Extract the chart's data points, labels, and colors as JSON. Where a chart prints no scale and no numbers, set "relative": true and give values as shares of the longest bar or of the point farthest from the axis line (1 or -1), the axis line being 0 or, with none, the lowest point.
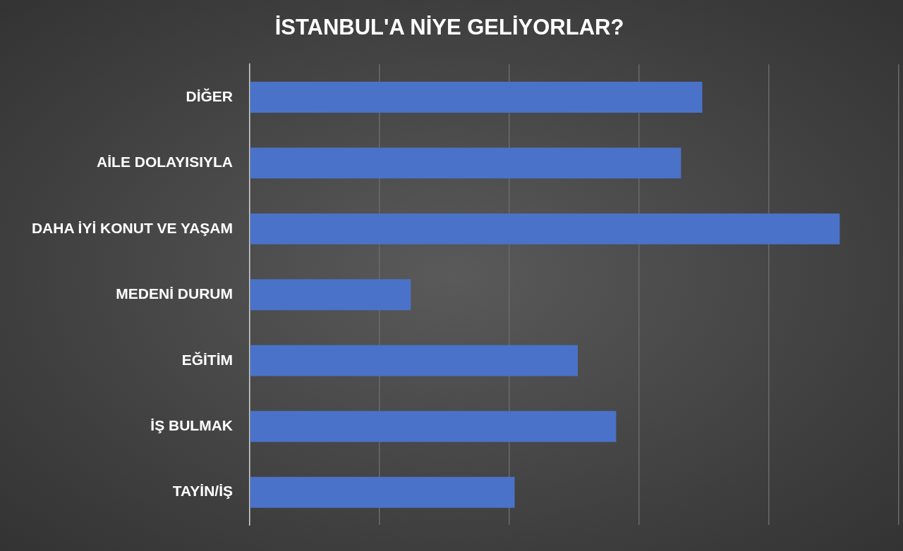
{
  "chart_data": {
    "type": "bar",
    "orientation": "horizontal",
    "relative": true,
    "title": "İSTANBUL'A NİYE GELİYORLAR?",
    "categories": [
      "DİĞER",
      "AİLE DOLAYISIYLA",
      "DAHA İYİ KONUT VE YAŞAM",
      "MEDENİ DURUM",
      "EĞİTİM",
      "İŞ BULMAK",
      "TAYİN/İŞ"
    ],
    "values": [
      0.767,
      0.731,
      1,
      0.273,
      0.556,
      0.621,
      0.449
    ],
    "color": "#4a72c8",
    "grid": "x"
  }
}
